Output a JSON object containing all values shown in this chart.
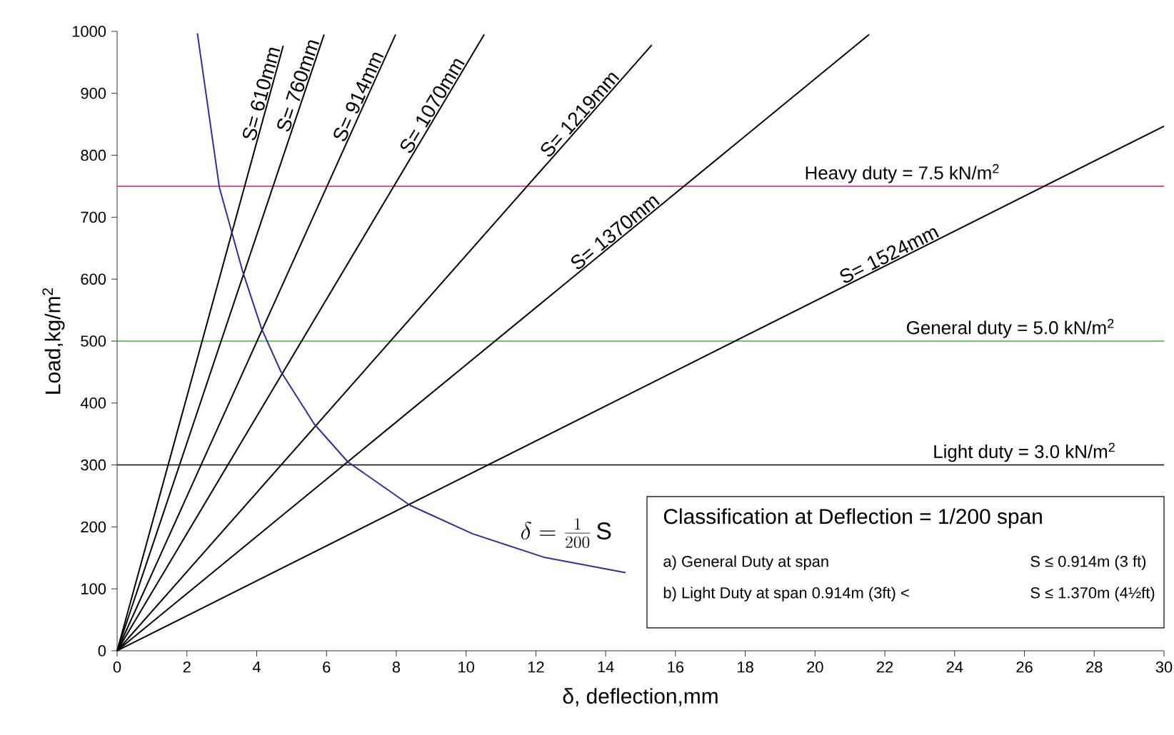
{
  "chart_data": {
    "type": "line",
    "xlabel": "δ, deflection,mm",
    "ylabel": "Load,kg/m$^{2}$",
    "xlim": [
      0,
      30
    ],
    "xticks": [
      0,
      2,
      4,
      6,
      8,
      10,
      12,
      14,
      16,
      18,
      20,
      22,
      24,
      26,
      28,
      30
    ],
    "ylim": [
      0,
      1000
    ],
    "yticks": [
      0,
      100,
      200,
      300,
      400,
      500,
      600,
      700,
      800,
      900,
      1000
    ],
    "grid": false,
    "marker": "none",
    "line_style": "solid",
    "series": [
      {
        "name": "S= 610mm",
        "color": "#000000",
        "x": [
          0,
          4.76
        ],
        "values": [
          0,
          977
        ]
      },
      {
        "name": "S= 760mm",
        "color": "#000000",
        "x": [
          0,
          5.93
        ],
        "values": [
          0,
          995
        ]
      },
      {
        "name": "S= 914mm",
        "color": "#000000",
        "x": [
          0,
          7.98
        ],
        "values": [
          0,
          995
        ]
      },
      {
        "name": "S= 1070mm",
        "color": "#000000",
        "x": [
          0,
          10.52
        ],
        "values": [
          0,
          995
        ]
      },
      {
        "name": "S= 1219mm",
        "color": "#000000",
        "x": [
          0,
          15.32
        ],
        "values": [
          0,
          978
        ]
      },
      {
        "name": "S= 1370mm",
        "color": "#000000",
        "x": [
          0,
          21.55
        ],
        "values": [
          0,
          995
        ]
      },
      {
        "name": "S= 1524mm",
        "color": "#000000",
        "x": [
          0,
          30
        ],
        "values": [
          0,
          847
        ]
      },
      {
        "name": "\\delta = \\frac{1}{200}\\,\\mathrm{S}",
        "color": "#2b2f9a",
        "x": [
          2.3,
          2.93,
          3.6,
          4.14,
          4.69,
          5.65,
          6.61,
          8.39,
          10.18,
          12.23,
          14.57
        ],
        "values": [
          997,
          748,
          612,
          520,
          451,
          366,
          305,
          235,
          189,
          151,
          126
        ]
      }
    ],
    "ref_lines": [
      {
        "axis": "y",
        "value": 750,
        "color": "#e0157f"
      },
      {
        "axis": "y",
        "value": 500,
        "color": "#3cb44b"
      },
      {
        "axis": "y",
        "value": 300,
        "color": "#000000"
      }
    ],
    "annotations": [
      "Heavy duty = 7.5 kN/m$^{2}$",
      "General duty = 5.0 kN/m$^{2}$",
      "Light duty = 3.0 kN/m$^{2}$",
      "Classification at Deflection = 1/200 span",
      "a) General Duty at span",
      "S ≤ 0.914m (3 ft)",
      "b) Light Duty at span   0.914m (3ft) <",
      "S ≤ 1.370m (4½ft)"
    ]
  }
}
